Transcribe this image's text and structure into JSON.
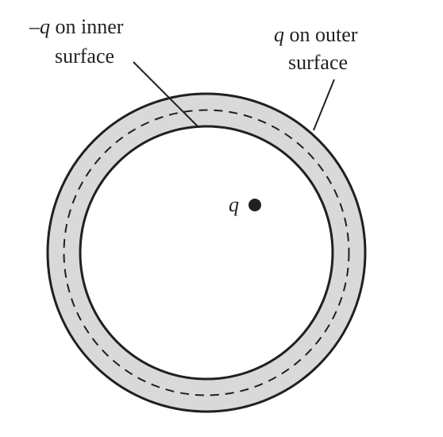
{
  "labels": {
    "inner_surface": {
      "line1_prefix": "–",
      "line1_var": "q",
      "line1_suffix": " on inner",
      "line2": "surface"
    },
    "outer_surface": {
      "line1_var": "q",
      "line1_suffix": " on outer",
      "line2": "surface"
    },
    "point_charge": {
      "var": "q"
    }
  },
  "colors": {
    "shell_fill": "#d9d9d9",
    "stroke": "#231f20",
    "background": "#ffffff"
  }
}
